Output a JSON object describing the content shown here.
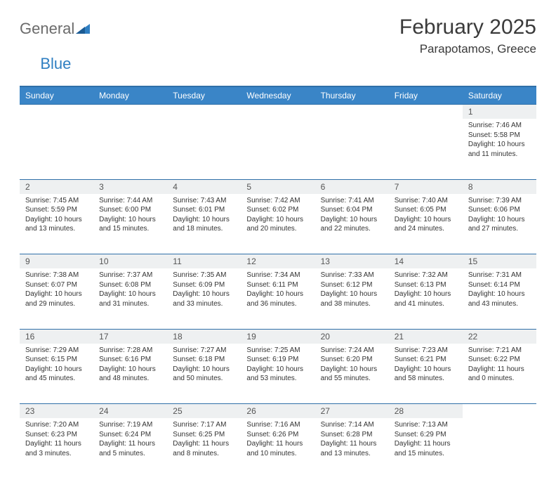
{
  "brand": {
    "word1": "General",
    "word2": "Blue"
  },
  "header": {
    "month_title": "February 2025",
    "location": "Parapotamos, Greece"
  },
  "colors": {
    "header_bg": "#3a85c7",
    "header_text": "#ffffff",
    "row_border": "#2f6fa8",
    "daynum_bg": "#eef0f1",
    "body_text": "#333333",
    "logo_gray": "#6b6b6b",
    "logo_blue": "#2f7fc2",
    "page_bg": "#ffffff"
  },
  "day_headers": [
    "Sunday",
    "Monday",
    "Tuesday",
    "Wednesday",
    "Thursday",
    "Friday",
    "Saturday"
  ],
  "weeks": [
    {
      "days": [
        {
          "n": "",
          "lines": [
            "",
            "",
            "",
            ""
          ]
        },
        {
          "n": "",
          "lines": [
            "",
            "",
            "",
            ""
          ]
        },
        {
          "n": "",
          "lines": [
            "",
            "",
            "",
            ""
          ]
        },
        {
          "n": "",
          "lines": [
            "",
            "",
            "",
            ""
          ]
        },
        {
          "n": "",
          "lines": [
            "",
            "",
            "",
            ""
          ]
        },
        {
          "n": "",
          "lines": [
            "",
            "",
            "",
            ""
          ]
        },
        {
          "n": "1",
          "lines": [
            "Sunrise: 7:46 AM",
            "Sunset: 5:58 PM",
            "Daylight: 10 hours",
            "and 11 minutes."
          ]
        }
      ]
    },
    {
      "days": [
        {
          "n": "2",
          "lines": [
            "Sunrise: 7:45 AM",
            "Sunset: 5:59 PM",
            "Daylight: 10 hours",
            "and 13 minutes."
          ]
        },
        {
          "n": "3",
          "lines": [
            "Sunrise: 7:44 AM",
            "Sunset: 6:00 PM",
            "Daylight: 10 hours",
            "and 15 minutes."
          ]
        },
        {
          "n": "4",
          "lines": [
            "Sunrise: 7:43 AM",
            "Sunset: 6:01 PM",
            "Daylight: 10 hours",
            "and 18 minutes."
          ]
        },
        {
          "n": "5",
          "lines": [
            "Sunrise: 7:42 AM",
            "Sunset: 6:02 PM",
            "Daylight: 10 hours",
            "and 20 minutes."
          ]
        },
        {
          "n": "6",
          "lines": [
            "Sunrise: 7:41 AM",
            "Sunset: 6:04 PM",
            "Daylight: 10 hours",
            "and 22 minutes."
          ]
        },
        {
          "n": "7",
          "lines": [
            "Sunrise: 7:40 AM",
            "Sunset: 6:05 PM",
            "Daylight: 10 hours",
            "and 24 minutes."
          ]
        },
        {
          "n": "8",
          "lines": [
            "Sunrise: 7:39 AM",
            "Sunset: 6:06 PM",
            "Daylight: 10 hours",
            "and 27 minutes."
          ]
        }
      ]
    },
    {
      "days": [
        {
          "n": "9",
          "lines": [
            "Sunrise: 7:38 AM",
            "Sunset: 6:07 PM",
            "Daylight: 10 hours",
            "and 29 minutes."
          ]
        },
        {
          "n": "10",
          "lines": [
            "Sunrise: 7:37 AM",
            "Sunset: 6:08 PM",
            "Daylight: 10 hours",
            "and 31 minutes."
          ]
        },
        {
          "n": "11",
          "lines": [
            "Sunrise: 7:35 AM",
            "Sunset: 6:09 PM",
            "Daylight: 10 hours",
            "and 33 minutes."
          ]
        },
        {
          "n": "12",
          "lines": [
            "Sunrise: 7:34 AM",
            "Sunset: 6:11 PM",
            "Daylight: 10 hours",
            "and 36 minutes."
          ]
        },
        {
          "n": "13",
          "lines": [
            "Sunrise: 7:33 AM",
            "Sunset: 6:12 PM",
            "Daylight: 10 hours",
            "and 38 minutes."
          ]
        },
        {
          "n": "14",
          "lines": [
            "Sunrise: 7:32 AM",
            "Sunset: 6:13 PM",
            "Daylight: 10 hours",
            "and 41 minutes."
          ]
        },
        {
          "n": "15",
          "lines": [
            "Sunrise: 7:31 AM",
            "Sunset: 6:14 PM",
            "Daylight: 10 hours",
            "and 43 minutes."
          ]
        }
      ]
    },
    {
      "days": [
        {
          "n": "16",
          "lines": [
            "Sunrise: 7:29 AM",
            "Sunset: 6:15 PM",
            "Daylight: 10 hours",
            "and 45 minutes."
          ]
        },
        {
          "n": "17",
          "lines": [
            "Sunrise: 7:28 AM",
            "Sunset: 6:16 PM",
            "Daylight: 10 hours",
            "and 48 minutes."
          ]
        },
        {
          "n": "18",
          "lines": [
            "Sunrise: 7:27 AM",
            "Sunset: 6:18 PM",
            "Daylight: 10 hours",
            "and 50 minutes."
          ]
        },
        {
          "n": "19",
          "lines": [
            "Sunrise: 7:25 AM",
            "Sunset: 6:19 PM",
            "Daylight: 10 hours",
            "and 53 minutes."
          ]
        },
        {
          "n": "20",
          "lines": [
            "Sunrise: 7:24 AM",
            "Sunset: 6:20 PM",
            "Daylight: 10 hours",
            "and 55 minutes."
          ]
        },
        {
          "n": "21",
          "lines": [
            "Sunrise: 7:23 AM",
            "Sunset: 6:21 PM",
            "Daylight: 10 hours",
            "and 58 minutes."
          ]
        },
        {
          "n": "22",
          "lines": [
            "Sunrise: 7:21 AM",
            "Sunset: 6:22 PM",
            "Daylight: 11 hours",
            "and 0 minutes."
          ]
        }
      ]
    },
    {
      "days": [
        {
          "n": "23",
          "lines": [
            "Sunrise: 7:20 AM",
            "Sunset: 6:23 PM",
            "Daylight: 11 hours",
            "and 3 minutes."
          ]
        },
        {
          "n": "24",
          "lines": [
            "Sunrise: 7:19 AM",
            "Sunset: 6:24 PM",
            "Daylight: 11 hours",
            "and 5 minutes."
          ]
        },
        {
          "n": "25",
          "lines": [
            "Sunrise: 7:17 AM",
            "Sunset: 6:25 PM",
            "Daylight: 11 hours",
            "and 8 minutes."
          ]
        },
        {
          "n": "26",
          "lines": [
            "Sunrise: 7:16 AM",
            "Sunset: 6:26 PM",
            "Daylight: 11 hours",
            "and 10 minutes."
          ]
        },
        {
          "n": "27",
          "lines": [
            "Sunrise: 7:14 AM",
            "Sunset: 6:28 PM",
            "Daylight: 11 hours",
            "and 13 minutes."
          ]
        },
        {
          "n": "28",
          "lines": [
            "Sunrise: 7:13 AM",
            "Sunset: 6:29 PM",
            "Daylight: 11 hours",
            "and 15 minutes."
          ]
        },
        {
          "n": "",
          "lines": [
            "",
            "",
            "",
            ""
          ]
        }
      ]
    }
  ]
}
